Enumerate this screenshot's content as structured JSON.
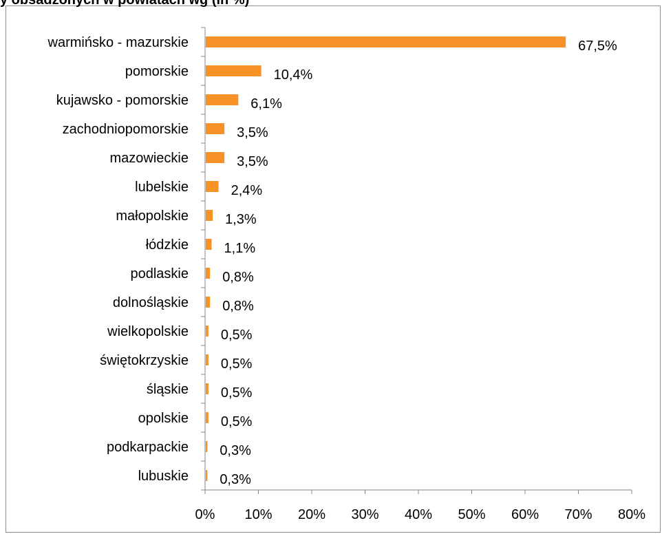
{
  "header": {
    "title": "y obsadzonych w powiatach wg (in %)"
  },
  "colors": {
    "bar": "#F79226",
    "axis": "#868686",
    "border": "#8c8c8c"
  },
  "chart_data": {
    "type": "bar",
    "orientation": "horizontal",
    "categories": [
      "warmińsko - mazurskie",
      "pomorskie",
      "kujawsko - pomorskie",
      "zachodniopomorskie",
      "mazowieckie",
      "lubelskie",
      "małopolskie",
      "łódzkie",
      "podlaskie",
      "dolnośląskie",
      "wielkopolskie",
      "świętokrzyskie",
      "śląskie",
      "opolskie",
      "podkarpackie",
      "lubuskie"
    ],
    "values": [
      67.5,
      10.4,
      6.1,
      3.5,
      3.5,
      2.4,
      1.3,
      1.1,
      0.8,
      0.8,
      0.5,
      0.5,
      0.5,
      0.5,
      0.3,
      0.3
    ],
    "data_labels": [
      "67,5%",
      "10,4%",
      "6,1%",
      "3,5%",
      "3,5%",
      "2,4%",
      "1,3%",
      "1,1%",
      "0,8%",
      "0,8%",
      "0,5%",
      "0,5%",
      "0,5%",
      "0,5%",
      "0,3%",
      "0,3%"
    ],
    "xlim": [
      0,
      80
    ],
    "x_ticks": [
      0,
      10,
      20,
      30,
      40,
      50,
      60,
      70,
      80
    ],
    "x_tick_labels": [
      "0%",
      "10%",
      "20%",
      "30%",
      "40%",
      "50%",
      "60%",
      "70%",
      "80%"
    ],
    "grid": false,
    "legend": false
  }
}
